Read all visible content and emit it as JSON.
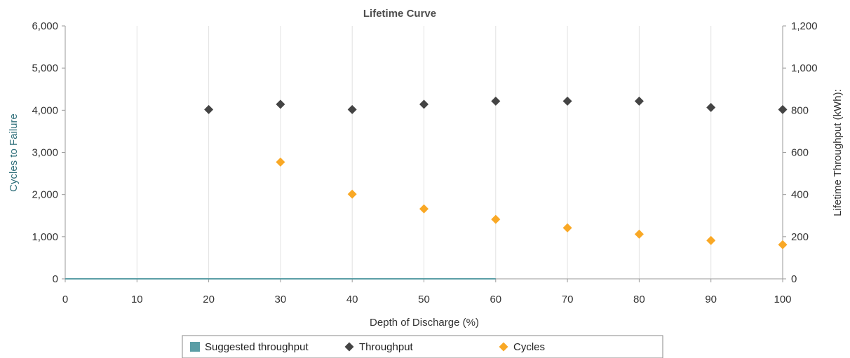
{
  "chart_data": {
    "type": "scatter",
    "title": "Lifetime Curve",
    "xlabel": "Depth of Discharge (%)",
    "ylabel": "Cycles to Failure",
    "y2label": "Lifetime Throughput (kWh):",
    "xlim": [
      0,
      100
    ],
    "ylim": [
      0,
      6000
    ],
    "y2lim": [
      0,
      1200
    ],
    "x_ticks": [
      0,
      10,
      20,
      30,
      40,
      50,
      60,
      70,
      80,
      90,
      100
    ],
    "x_tick_labels": [
      "0",
      "10",
      "20",
      "30",
      "40",
      "50",
      "60",
      "70",
      "80",
      "90",
      "100"
    ],
    "y_ticks": [
      0,
      1000,
      2000,
      3000,
      4000,
      5000,
      6000
    ],
    "y_tick_labels": [
      "0",
      "1,000",
      "2,000",
      "3,000",
      "4,000",
      "5,000",
      "6,000"
    ],
    "y2_ticks": [
      0,
      200,
      400,
      600,
      800,
      1000,
      1200
    ],
    "y2_tick_labels": [
      "0",
      "200",
      "400",
      "600",
      "800",
      "1,000",
      "1,200"
    ],
    "grid": "vertical",
    "legend_position": "bottom",
    "series": [
      {
        "name": "Suggested throughput",
        "marker": "square-line",
        "color": "#5b9ea6",
        "axis": "left",
        "x": [
          0,
          60
        ],
        "y": [
          0,
          0
        ]
      },
      {
        "name": "Throughput",
        "marker": "diamond",
        "color": "#444444",
        "axis": "right",
        "x": [
          20,
          30,
          40,
          50,
          60,
          70,
          80,
          90,
          100
        ],
        "y": [
          803,
          828,
          803,
          828,
          843,
          843,
          843,
          813,
          803
        ]
      },
      {
        "name": "Cycles",
        "marker": "diamond",
        "color": "#f9a825",
        "axis": "left",
        "x": [
          30,
          40,
          50,
          60,
          70,
          80,
          90,
          100
        ],
        "y": [
          2770,
          2010,
          1660,
          1410,
          1210,
          1060,
          910,
          810
        ]
      }
    ]
  }
}
